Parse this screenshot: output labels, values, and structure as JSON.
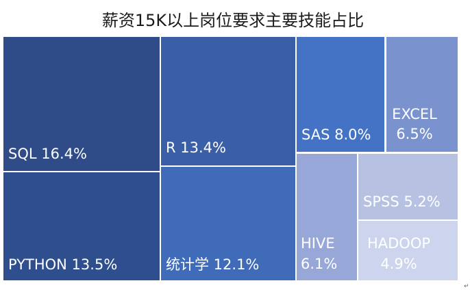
{
  "chart_data": {
    "type": "treemap",
    "title": "薪资15K以上岗位要求主要技能占比",
    "items": [
      {
        "name": "SQL",
        "value": 16.4,
        "label_lines": [
          "SQL 16.4%"
        ],
        "color": "#2F4B88"
      },
      {
        "name": "PYTHON",
        "value": 13.5,
        "label_lines": [
          "PYTHON 13.5%"
        ],
        "color": "#2F4E8E"
      },
      {
        "name": "R",
        "value": 13.4,
        "label_lines": [
          "R 13.4%"
        ],
        "color": "#3A5FA6"
      },
      {
        "name": "统计学",
        "value": 12.1,
        "label_lines": [
          "统计学 12.1%"
        ],
        "color": "#3F6BB9"
      },
      {
        "name": "SAS",
        "value": 8.0,
        "label_lines": [
          "SAS 8.0%"
        ],
        "color": "#4472C4"
      },
      {
        "name": "EXCEL",
        "value": 6.5,
        "label_lines": [
          "EXCEL",
          "6.5%"
        ],
        "color": "#7A93CE"
      },
      {
        "name": "HIVE",
        "value": 6.1,
        "label_lines": [
          "HIVE",
          "6.1%"
        ],
        "color": "#97A8D8"
      },
      {
        "name": "SPSS",
        "value": 5.2,
        "label_lines": [
          "SPSS 5.2%"
        ],
        "color": "#B7C2E3"
      },
      {
        "name": "HADOOP",
        "value": 4.9,
        "label_lines": [
          "HADOOP",
          "4.9%"
        ],
        "color": "#CDD4EE"
      }
    ]
  },
  "corner_mark": "↵"
}
